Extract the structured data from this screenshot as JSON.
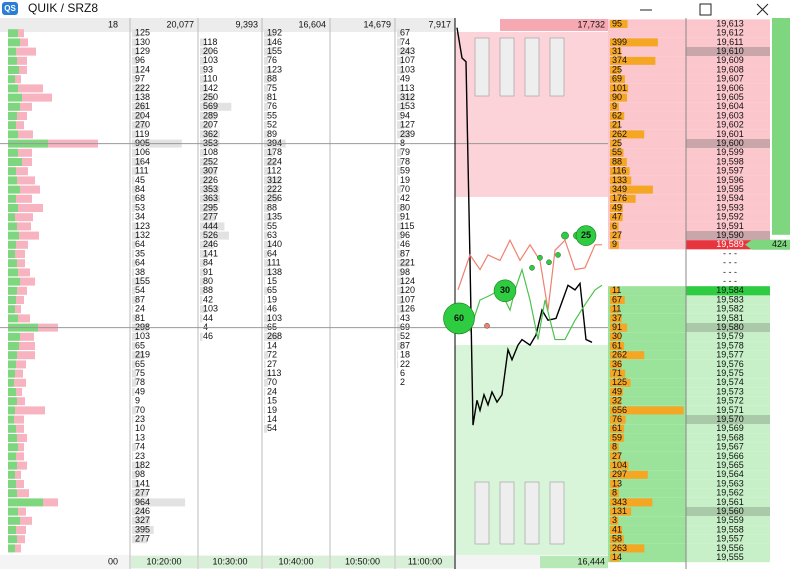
{
  "title_bar": {
    "logo": "QS",
    "app": "QUIK / SRZ8"
  },
  "profile": {
    "total": "18",
    "time": "00",
    "buy": [
      10,
      12,
      8,
      9,
      11,
      7,
      10,
      14,
      12,
      9,
      8,
      10,
      40,
      10,
      14,
      8,
      9,
      12,
      8,
      10,
      7,
      9,
      11,
      8,
      7,
      9,
      10,
      12,
      9,
      8,
      7,
      10,
      30,
      12,
      11,
      9,
      8,
      7,
      6,
      8,
      9,
      7,
      6,
      8,
      9,
      10,
      8,
      9,
      7,
      8,
      9,
      35,
      10,
      12,
      8,
      9,
      7
    ],
    "sell": [
      6,
      8,
      20,
      10,
      8,
      6,
      25,
      30,
      12,
      10,
      8,
      15,
      50,
      14,
      10,
      12,
      18,
      20,
      16,
      25,
      18,
      14,
      20,
      12,
      10,
      8,
      12,
      15,
      10,
      8,
      6,
      12,
      20,
      14,
      16,
      18,
      10,
      8,
      12,
      6,
      8,
      30,
      10,
      8,
      10,
      6,
      8,
      10,
      6,
      8,
      12,
      15,
      8,
      12,
      10,
      8,
      6
    ],
    "buy_color": "#7ed67e",
    "sell_color": "#f7b3bf"
  },
  "time_columns": [
    {
      "time": "10:20:00",
      "total": "20,077",
      "volumes": [
        125,
        130,
        129,
        96,
        124,
        97,
        222,
        138,
        261,
        204,
        270,
        119,
        905,
        106,
        164,
        111,
        45,
        84,
        68,
        53,
        34,
        123,
        132,
        64,
        35,
        64,
        38,
        155,
        54,
        87,
        24,
        81,
        298,
        103,
        65,
        219,
        65,
        75,
        78,
        49,
        9,
        70,
        23,
        10,
        13,
        74,
        23,
        182,
        98,
        141,
        277,
        964,
        246,
        327,
        395,
        277
      ]
    },
    {
      "time": "10:30:00",
      "total": "9,393",
      "volumes": [
        null,
        118,
        206,
        103,
        93,
        110,
        142,
        250,
        569,
        289,
        207,
        362,
        353,
        108,
        252,
        307,
        226,
        353,
        363,
        295,
        277,
        444,
        526,
        246,
        141,
        84,
        91,
        80,
        88,
        42,
        103,
        44,
        4,
        46
      ]
    },
    {
      "time": "10:40:00",
      "total": "16,604",
      "volumes": [
        192,
        146,
        155,
        76,
        123,
        88,
        75,
        81,
        76,
        55,
        52,
        89,
        394,
        178,
        224,
        112,
        312,
        222,
        256,
        88,
        135,
        55,
        63,
        140,
        64,
        111,
        138,
        15,
        65,
        19,
        46,
        103,
        65,
        268,
        14,
        72,
        27,
        113,
        70,
        24,
        15,
        19,
        14,
        54
      ]
    },
    {
      "time": "10:50:00",
      "total": "14,679",
      "volumes": []
    },
    {
      "time": "11:00:00",
      "total": "7,917",
      "volumes": [
        67,
        74,
        243,
        107,
        103,
        49,
        113,
        312,
        153,
        94,
        127,
        239,
        8,
        79,
        78,
        59,
        19,
        70,
        42,
        80,
        91,
        115,
        96,
        46,
        87,
        221,
        98,
        124,
        120,
        107,
        126,
        43,
        69,
        52,
        87,
        18,
        22,
        6,
        2
      ]
    }
  ],
  "chart": {
    "type": "line",
    "xlim": [
      0,
      153
    ],
    "ylim": [
      19555,
      19613
    ],
    "grid_prices": [
      19600,
      19580
    ],
    "top_total": "17,732",
    "bottom_total": "16,444",
    "series": [
      {
        "color": "#000000",
        "x": [
          2,
          7,
          11,
          15,
          18,
          22,
          25,
          29,
          33,
          37,
          42,
          47,
          53,
          57,
          63,
          67,
          75,
          81,
          87,
          93,
          101,
          107,
          113,
          120,
          125,
          131,
          137
        ],
        "values": [
          19612.6,
          19609.3,
          19608.9,
          19587.3,
          19569.4,
          19572.1,
          19571.0,
          19572.7,
          19571.6,
          19573.0,
          19571.9,
          19572.7,
          19577.6,
          19576.5,
          19578.1,
          19578.7,
          19578.1,
          19579.2,
          19581.9,
          19580.8,
          19581.0,
          19582.8,
          19584.6,
          19584.1,
          19584.8,
          19578.7,
          19578.4
        ]
      },
      {
        "color": "#f08070",
        "x": [
          3,
          15,
          25,
          33,
          45,
          55,
          65,
          75,
          85,
          93,
          100,
          110,
          120,
          130,
          140,
          147
        ],
        "values": [
          19584.1,
          19587.9,
          19586.3,
          19587.9,
          19587.3,
          19589.5,
          19587.3,
          19589.0,
          19587.3,
          19581.9,
          19588.4,
          19589.5,
          19586.3,
          19586.5,
          19589.0,
          19589.0
        ]
      },
      {
        "color": "#4cc24c",
        "x": [
          5,
          15,
          25,
          35,
          45,
          55,
          60,
          67,
          75,
          83,
          90,
          100,
          110,
          120,
          130,
          140,
          147
        ],
        "values": [
          19582.5,
          19579.7,
          19583.0,
          19583.5,
          19584.1,
          19581.9,
          19584.1,
          19586.3,
          19583.0,
          19578.7,
          19583.0,
          19578.7,
          19578.7,
          19580.8,
          19582.5,
          19584.1,
          19584.6
        ]
      }
    ],
    "bubbles": {
      "color": "#2ecc40",
      "x": [
        4,
        50,
        131
      ],
      "y": [
        19581.0,
        19584.0,
        19590.0
      ],
      "sizes": [
        60,
        30,
        25
      ]
    },
    "dots": {
      "x": [
        110,
        122,
        85,
        94,
        103,
        77,
        32
      ],
      "y": [
        19590.0,
        19590.0,
        19587.6,
        19587.1,
        19587.9,
        19586.5,
        19580.2
      ],
      "sizes": [
        6,
        6,
        3,
        3,
        3,
        3,
        3
      ],
      "colors": [
        "#2ecc40",
        "#2ecc40",
        "#2ecc40",
        "#2ecc40",
        "#2ecc40",
        "#2ecc40",
        "#f08070"
      ]
    }
  },
  "ladder": {
    "ask_color": "#fbc6cc",
    "bid_color": "#9be39b",
    "volume_color": "#f5a623",
    "right_marker": "424",
    "prices": [
      "19,613",
      "19,612",
      "19,611",
      "19,610",
      "19,609",
      "19,608",
      "19,607",
      "19,606",
      "19,605",
      "19,604",
      "19,603",
      "19,602",
      "19,601",
      "19,600",
      "19,599",
      "19,598",
      "19,597",
      "19,596",
      "19,595",
      "19,594",
      "19,593",
      "19,592",
      "19,591",
      "19,590",
      "19,589",
      "- - -",
      "- - -",
      "- - -",
      "- - -",
      "19,584",
      "19,583",
      "19,582",
      "19,581",
      "19,580",
      "19,579",
      "19,578",
      "19,577",
      "19,576",
      "19,575",
      "19,574",
      "19,573",
      "19,572",
      "19,571",
      "19,570",
      "19,569",
      "19,568",
      "19,567",
      "19,566",
      "19,565",
      "19,564",
      "19,563",
      "19,562",
      "19,561",
      "19,560",
      "19,559",
      "19,558",
      "19,557",
      "19,556",
      "19,555"
    ],
    "volumes": [
      95,
      null,
      399,
      31,
      374,
      25,
      69,
      101,
      90,
      9,
      62,
      21,
      262,
      25,
      55,
      88,
      116,
      133,
      349,
      176,
      49,
      47,
      6,
      27,
      9,
      null,
      null,
      null,
      null,
      11,
      67,
      11,
      37,
      91,
      30,
      61,
      262,
      36,
      71,
      125,
      49,
      32,
      656,
      76,
      61,
      59,
      8,
      27,
      104,
      297,
      13,
      8,
      343,
      131,
      3,
      41,
      58,
      263,
      14
    ]
  }
}
